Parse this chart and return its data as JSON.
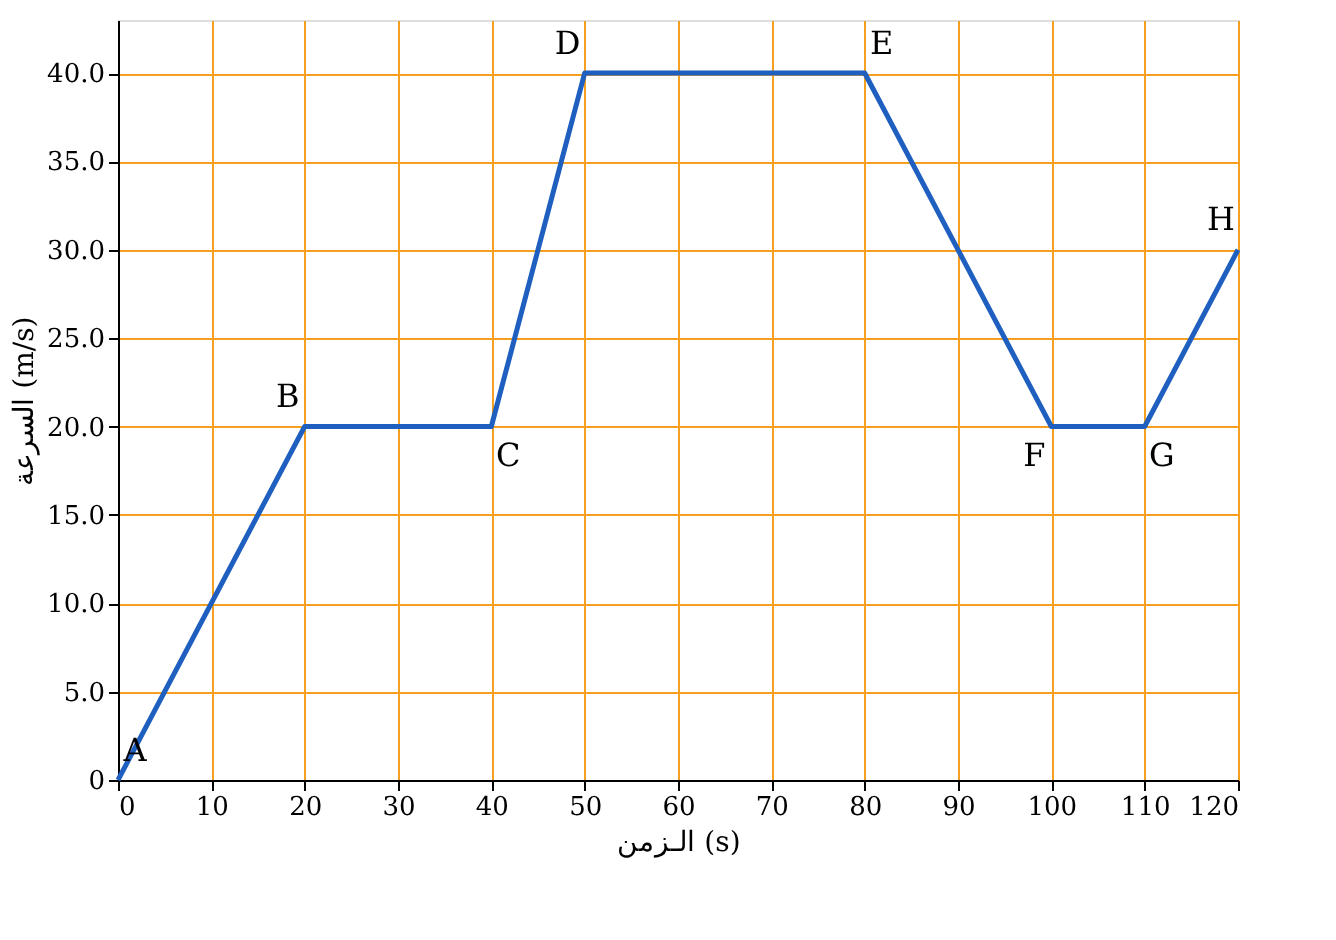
{
  "chart_data": {
    "type": "line",
    "xlabel": "الـزمن (s)",
    "ylabel": "السرعة (m/s)",
    "x": [
      0,
      20,
      40,
      50,
      80,
      100,
      110,
      120
    ],
    "series": [
      {
        "color": "#1f5fbf",
        "values": [
          0,
          20,
          20,
          40,
          40,
          20,
          20,
          30
        ]
      }
    ],
    "xlim": [
      0,
      120
    ],
    "xticks": [
      0,
      10,
      20,
      30,
      40,
      50,
      60,
      70,
      80,
      90,
      100,
      110,
      120
    ],
    "ylim": [
      0,
      43
    ],
    "yticks": [
      0,
      {
        "value": 5,
        "label": "5.0"
      },
      {
        "value": 10,
        "label": "10.0"
      },
      {
        "value": 15,
        "label": "15.0"
      },
      {
        "value": 20,
        "label": "20.0"
      },
      {
        "value": 25,
        "label": "25.0"
      },
      {
        "value": 30,
        "label": "30.0"
      },
      {
        "value": 35,
        "label": "35.0"
      },
      {
        "value": 40,
        "label": "40.0"
      }
    ],
    "grid": true,
    "marker": "none",
    "line_style": "solid",
    "annotations": [
      {
        "text": "A",
        "x": 0,
        "y": 0
      },
      {
        "text": "B",
        "x": 20,
        "y": 20
      },
      {
        "text": "C",
        "x": 40,
        "y": 20
      },
      {
        "text": "D",
        "x": 50,
        "y": 40
      },
      {
        "text": "E",
        "x": 80,
        "y": 40
      },
      {
        "text": "F",
        "x": 100,
        "y": 20
      },
      {
        "text": "G",
        "x": 110,
        "y": 20
      },
      {
        "text": "H",
        "x": 120,
        "y": 30
      }
    ]
  }
}
